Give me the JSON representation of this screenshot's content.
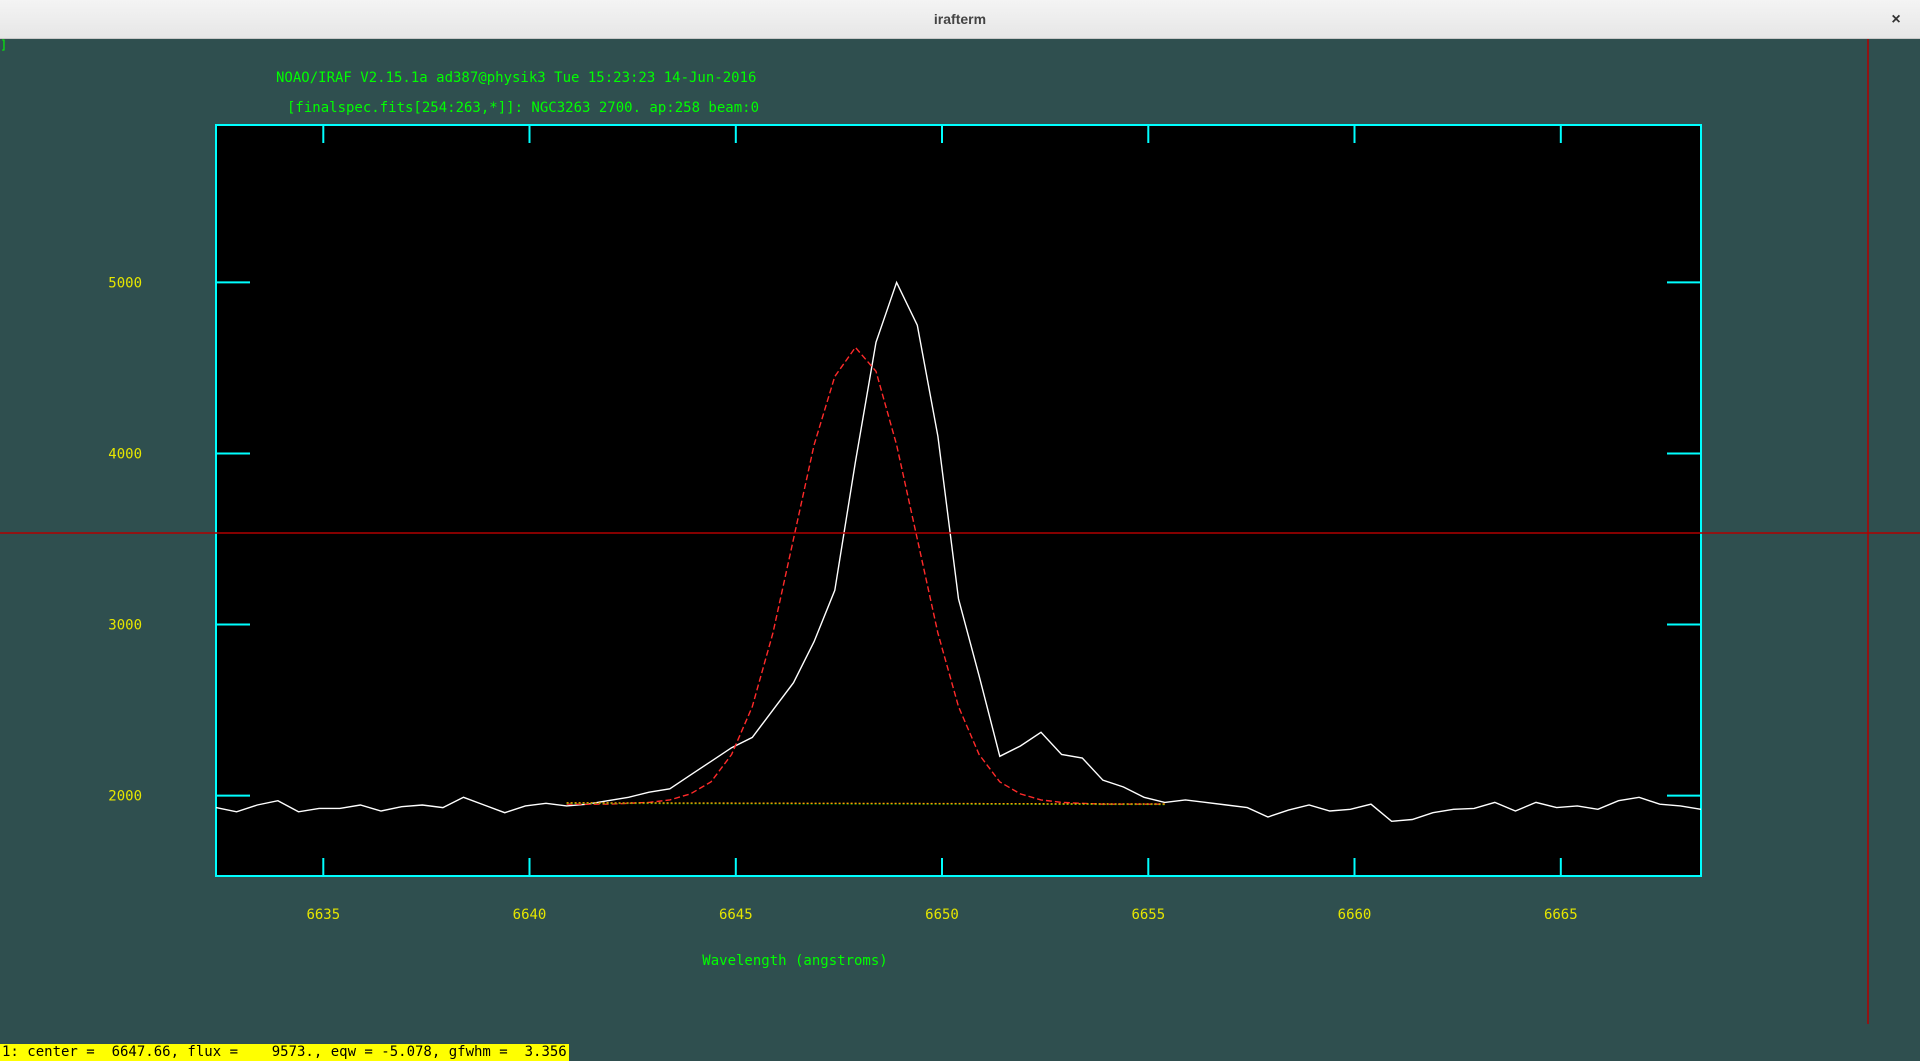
{
  "window": {
    "title": "irafterm",
    "close_glyph": "×"
  },
  "plot": {
    "header_line1": "NOAO/IRAF V2.15.1a ad387@physik3 Tue 15:23:23 14-Jun-2016",
    "header_line2": "[finalspec.fits[254:263,*]]: NGC3263 2700. ap:258 beam:0",
    "xlabel": "Wavelength (angstroms)",
    "cursor_y": 3535
  },
  "chart_data": {
    "type": "line",
    "title": "[finalspec.fits[254:263,*]]: NGC3263 2700. ap:258 beam:0",
    "xlabel": "Wavelength (angstroms)",
    "ylabel": "",
    "xlim": [
      6632.4,
      6668.4
    ],
    "ylim": [
      1530,
      5920
    ],
    "x_ticks": [
      6635,
      6640,
      6645,
      6650,
      6655,
      6660,
      6665
    ],
    "y_ticks": [
      2000,
      3000,
      4000,
      5000
    ],
    "grid": false,
    "series": [
      {
        "color": "#ffffff",
        "style": "solid",
        "x": [
          6632.4,
          6632.9,
          6633.4,
          6633.9,
          6634.4,
          6634.9,
          6635.4,
          6635.9,
          6636.4,
          6636.9,
          6637.4,
          6637.9,
          6638.4,
          6638.9,
          6639.4,
          6639.9,
          6640.4,
          6640.9,
          6641.4,
          6641.9,
          6642.4,
          6642.9,
          6643.4,
          6643.9,
          6644.4,
          6644.9,
          6645.4,
          6645.9,
          6646.4,
          6646.9,
          6647.4,
          6647.9,
          6648.4,
          6648.9,
          6649.4,
          6649.9,
          6650.4,
          6650.9,
          6651.4,
          6651.9,
          6652.4,
          6652.9,
          6653.4,
          6653.9,
          6654.4,
          6654.9,
          6655.4,
          6655.9,
          6656.4,
          6656.9,
          6657.4,
          6657.9,
          6658.4,
          6658.9,
          6659.4,
          6659.9,
          6660.4,
          6660.9,
          6661.4,
          6661.9,
          6662.4,
          6662.9,
          6663.4,
          6663.9,
          6664.4,
          6664.9,
          6665.4,
          6665.9,
          6666.4,
          6666.9,
          6667.4,
          6667.9,
          6668.4
        ],
        "y": [
          1930,
          1905,
          1945,
          1970,
          1905,
          1925,
          1925,
          1945,
          1910,
          1935,
          1945,
          1930,
          1990,
          1945,
          1900,
          1940,
          1955,
          1940,
          1950,
          1970,
          1990,
          2020,
          2040,
          2120,
          2200,
          2280,
          2340,
          2500,
          2660,
          2900,
          3200,
          3950,
          4650,
          5000,
          4750,
          4100,
          3150,
          2700,
          2230,
          2290,
          2370,
          2240,
          2220,
          2090,
          2050,
          1990,
          1960,
          1975,
          1960,
          1945,
          1930,
          1875,
          1915,
          1945,
          1910,
          1920,
          1950,
          1850,
          1860,
          1900,
          1920,
          1925,
          1960,
          1910,
          1960,
          1930,
          1940,
          1920,
          1970,
          1990,
          1950,
          1940,
          1920
        ]
      },
      {
        "color": "#ff2a2a",
        "style": "dashed",
        "x": [
          6640.9,
          6641.4,
          6641.9,
          6642.4,
          6642.9,
          6643.4,
          6643.9,
          6644.4,
          6644.9,
          6645.4,
          6645.9,
          6646.4,
          6646.9,
          6647.4,
          6647.9,
          6648.4,
          6648.9,
          6649.4,
          6649.9,
          6650.4,
          6650.9,
          6651.4,
          6651.9,
          6652.4,
          6652.9,
          6653.4,
          6653.9,
          6654.4,
          6654.9,
          6655.4
        ],
        "y": [
          1950,
          1950,
          1950,
          1955,
          1960,
          1975,
          2010,
          2080,
          2240,
          2520,
          2950,
          3500,
          4050,
          4450,
          4620,
          4480,
          4050,
          3500,
          2950,
          2520,
          2240,
          2080,
          2010,
          1975,
          1960,
          1955,
          1950,
          1950,
          1950,
          1950
        ]
      },
      {
        "color": "#00c000",
        "style": "dotted",
        "x": [
          6640.9,
          6655.4
        ],
        "y": [
          1955,
          1948
        ]
      },
      {
        "color": "#ff9900",
        "style": "dotted",
        "x": [
          6640.9,
          6655.4
        ],
        "y": [
          1958,
          1951
        ]
      }
    ]
  },
  "status_line": "1: center =  6647.66, flux =    9573., eqw = -5.078, gfwhm =  3.356"
}
